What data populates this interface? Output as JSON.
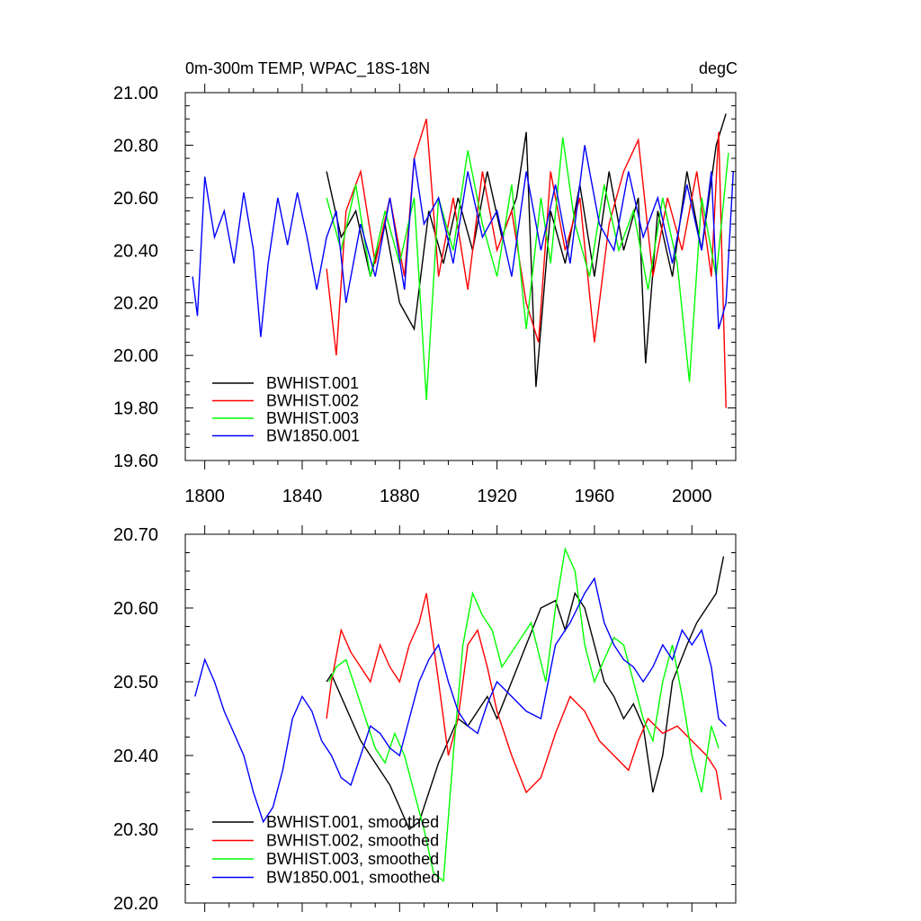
{
  "chart_data": [
    {
      "type": "line",
      "title_left": "0m-300m TEMP, WPAC_18S-18N",
      "title_right": "degC",
      "xlim": [
        1792,
        2018
      ],
      "ylim": [
        19.6,
        21.0
      ],
      "x_ticks": [
        "1800",
        "1840",
        "1880",
        "1920",
        "1960",
        "2000"
      ],
      "y_ticks": [
        "19.60",
        "19.80",
        "20.00",
        "20.20",
        "20.40",
        "20.60",
        "20.80",
        "21.00"
      ],
      "legend_position": "bottom-left",
      "series": [
        {
          "name": "BWHIST.001",
          "color": "#000000",
          "x": [
            1850,
            1856,
            1862,
            1868,
            1874,
            1880,
            1886,
            1892,
            1898,
            1904,
            1910,
            1916,
            1922,
            1928,
            1932,
            1936,
            1942,
            1948,
            1954,
            1960,
            1966,
            1972,
            1978,
            1981,
            1986,
            1992,
            1998,
            2004,
            2010,
            2014
          ],
          "y": [
            20.7,
            20.45,
            20.55,
            20.3,
            20.5,
            20.2,
            20.1,
            20.55,
            20.35,
            20.6,
            20.4,
            20.7,
            20.45,
            20.6,
            20.85,
            19.88,
            20.55,
            20.35,
            20.65,
            20.3,
            20.7,
            20.4,
            20.6,
            19.97,
            20.55,
            20.3,
            20.7,
            20.4,
            20.8,
            20.92
          ]
        },
        {
          "name": "BWHIST.002",
          "color": "#ff0000",
          "x": [
            1850,
            1854,
            1858,
            1864,
            1870,
            1876,
            1882,
            1886,
            1891,
            1896,
            1902,
            1908,
            1914,
            1920,
            1926,
            1932,
            1937,
            1942,
            1948,
            1954,
            1960,
            1966,
            1972,
            1978,
            1984,
            1990,
            1996,
            2002,
            2008,
            2011,
            2014
          ],
          "y": [
            20.33,
            20.0,
            20.55,
            20.7,
            20.35,
            20.6,
            20.3,
            20.75,
            20.9,
            20.3,
            20.6,
            20.25,
            20.7,
            20.4,
            20.55,
            20.2,
            20.05,
            20.7,
            20.4,
            20.6,
            20.05,
            20.5,
            20.7,
            20.82,
            20.3,
            20.6,
            20.4,
            20.7,
            20.3,
            20.85,
            19.8
          ]
        },
        {
          "name": "BWHIST.003",
          "color": "#00ff00",
          "x": [
            1850,
            1856,
            1862,
            1868,
            1874,
            1880,
            1886,
            1891,
            1896,
            1902,
            1908,
            1914,
            1920,
            1926,
            1932,
            1938,
            1942,
            1947,
            1952,
            1958,
            1964,
            1970,
            1976,
            1982,
            1988,
            1994,
            1999,
            2004,
            2010,
            2015
          ],
          "y": [
            20.6,
            20.4,
            20.65,
            20.3,
            20.55,
            20.35,
            20.6,
            19.83,
            20.6,
            20.4,
            20.78,
            20.5,
            20.3,
            20.65,
            20.1,
            20.6,
            20.35,
            20.83,
            20.5,
            20.3,
            20.65,
            20.4,
            20.55,
            20.25,
            20.6,
            20.35,
            19.9,
            20.6,
            20.3,
            20.77
          ]
        },
        {
          "name": "BW1850.001",
          "color": "#0000ff",
          "x": [
            1795,
            1797,
            1800,
            1804,
            1808,
            1812,
            1816,
            1820,
            1823,
            1826,
            1830,
            1834,
            1838,
            1842,
            1846,
            1850,
            1854,
            1858,
            1864,
            1870,
            1876,
            1882,
            1886,
            1890,
            1896,
            1902,
            1908,
            1914,
            1920,
            1926,
            1932,
            1938,
            1944,
            1950,
            1956,
            1962,
            1968,
            1974,
            1980,
            1986,
            1992,
            1998,
            2004,
            2008,
            2011,
            2014,
            2017
          ],
          "y": [
            20.3,
            20.15,
            20.68,
            20.45,
            20.55,
            20.35,
            20.62,
            20.4,
            20.07,
            20.35,
            20.6,
            20.42,
            20.62,
            20.45,
            20.25,
            20.45,
            20.55,
            20.2,
            20.5,
            20.3,
            20.6,
            20.25,
            20.75,
            20.5,
            20.6,
            20.35,
            20.7,
            20.45,
            20.55,
            20.3,
            20.7,
            20.4,
            20.65,
            20.35,
            20.8,
            20.5,
            20.4,
            20.7,
            20.45,
            20.6,
            20.35,
            20.65,
            20.4,
            20.7,
            20.1,
            20.2,
            20.7
          ]
        }
      ]
    },
    {
      "type": "line",
      "xlim": [
        1792,
        2018
      ],
      "ylim": [
        20.2,
        20.7
      ],
      "y_ticks": [
        "20.20",
        "20.30",
        "20.40",
        "20.50",
        "20.60",
        "20.70"
      ],
      "legend_position": "bottom-left",
      "series": [
        {
          "name": "BWHIST.001, smoothed",
          "color": "#000000",
          "x": [
            1850,
            1852,
            1856,
            1860,
            1864,
            1868,
            1872,
            1876,
            1880,
            1884,
            1888,
            1892,
            1896,
            1900,
            1904,
            1908,
            1912,
            1916,
            1920,
            1926,
            1932,
            1938,
            1944,
            1948,
            1952,
            1956,
            1960,
            1964,
            1968,
            1972,
            1976,
            1980,
            1984,
            1988,
            1992,
            1998,
            2002,
            2006,
            2010,
            2013
          ],
          "y": [
            20.5,
            20.51,
            20.48,
            20.45,
            20.42,
            20.4,
            20.38,
            20.36,
            20.33,
            20.3,
            20.31,
            20.35,
            20.39,
            20.42,
            20.45,
            20.44,
            20.46,
            20.48,
            20.45,
            20.5,
            20.55,
            20.6,
            20.61,
            20.57,
            20.62,
            20.6,
            20.55,
            20.5,
            20.48,
            20.45,
            20.47,
            20.44,
            20.35,
            20.4,
            20.5,
            20.55,
            20.58,
            20.6,
            20.62,
            20.67
          ]
        },
        {
          "name": "BWHIST.002, smoothed",
          "color": "#ff0000",
          "x": [
            1850,
            1852,
            1856,
            1860,
            1864,
            1868,
            1872,
            1876,
            1880,
            1884,
            1888,
            1891,
            1896,
            1900,
            1904,
            1908,
            1912,
            1916,
            1920,
            1926,
            1932,
            1938,
            1944,
            1950,
            1956,
            1962,
            1968,
            1974,
            1978,
            1982,
            1988,
            1994,
            2000,
            2006,
            2010,
            2012
          ],
          "y": [
            20.45,
            20.5,
            20.57,
            20.54,
            20.52,
            20.5,
            20.55,
            20.52,
            20.5,
            20.55,
            20.58,
            20.62,
            20.5,
            20.4,
            20.45,
            20.55,
            20.57,
            20.52,
            20.46,
            20.4,
            20.35,
            20.37,
            20.43,
            20.48,
            20.46,
            20.42,
            20.4,
            20.38,
            20.42,
            20.45,
            20.43,
            20.44,
            20.42,
            20.4,
            20.38,
            20.34
          ]
        },
        {
          "name": "BWHIST.003, smoothed",
          "color": "#00ff00",
          "x": [
            1851,
            1854,
            1858,
            1862,
            1866,
            1870,
            1874,
            1878,
            1882,
            1886,
            1890,
            1894,
            1898,
            1902,
            1906,
            1910,
            1914,
            1918,
            1922,
            1928,
            1934,
            1940,
            1944,
            1948,
            1952,
            1956,
            1960,
            1964,
            1968,
            1972,
            1976,
            1980,
            1984,
            1988,
            1992,
            1996,
            2000,
            2004,
            2008,
            2011
          ],
          "y": [
            20.5,
            20.52,
            20.53,
            20.49,
            20.45,
            20.41,
            20.39,
            20.43,
            20.4,
            20.35,
            20.3,
            20.24,
            20.23,
            20.4,
            20.55,
            20.62,
            20.59,
            20.57,
            20.52,
            20.55,
            20.58,
            20.5,
            20.6,
            20.68,
            20.65,
            20.55,
            20.5,
            20.53,
            20.56,
            20.55,
            20.5,
            20.45,
            20.42,
            20.5,
            20.55,
            20.48,
            20.4,
            20.35,
            20.44,
            20.41
          ]
        },
        {
          "name": "BW1850.001, smoothed",
          "color": "#0000ff",
          "x": [
            1796,
            1800,
            1804,
            1808,
            1812,
            1816,
            1820,
            1824,
            1828,
            1832,
            1836,
            1840,
            1844,
            1848,
            1852,
            1856,
            1860,
            1864,
            1868,
            1872,
            1876,
            1880,
            1884,
            1888,
            1892,
            1896,
            1900,
            1904,
            1908,
            1912,
            1916,
            1920,
            1926,
            1932,
            1938,
            1944,
            1950,
            1956,
            1960,
            1964,
            1968,
            1972,
            1976,
            1980,
            1984,
            1988,
            1992,
            1996,
            2000,
            2004,
            2008,
            2011,
            2014
          ],
          "y": [
            20.48,
            20.53,
            20.5,
            20.46,
            20.43,
            20.4,
            20.35,
            20.31,
            20.33,
            20.38,
            20.45,
            20.48,
            20.46,
            20.42,
            20.4,
            20.37,
            20.36,
            20.4,
            20.44,
            20.43,
            20.41,
            20.4,
            20.45,
            20.5,
            20.53,
            20.55,
            20.5,
            20.46,
            20.44,
            20.43,
            20.47,
            20.5,
            20.48,
            20.46,
            20.45,
            20.55,
            20.58,
            20.62,
            20.64,
            20.58,
            20.55,
            20.53,
            20.52,
            20.5,
            20.52,
            20.55,
            20.53,
            20.57,
            20.55,
            20.57,
            20.52,
            20.45,
            20.44
          ]
        }
      ]
    }
  ]
}
